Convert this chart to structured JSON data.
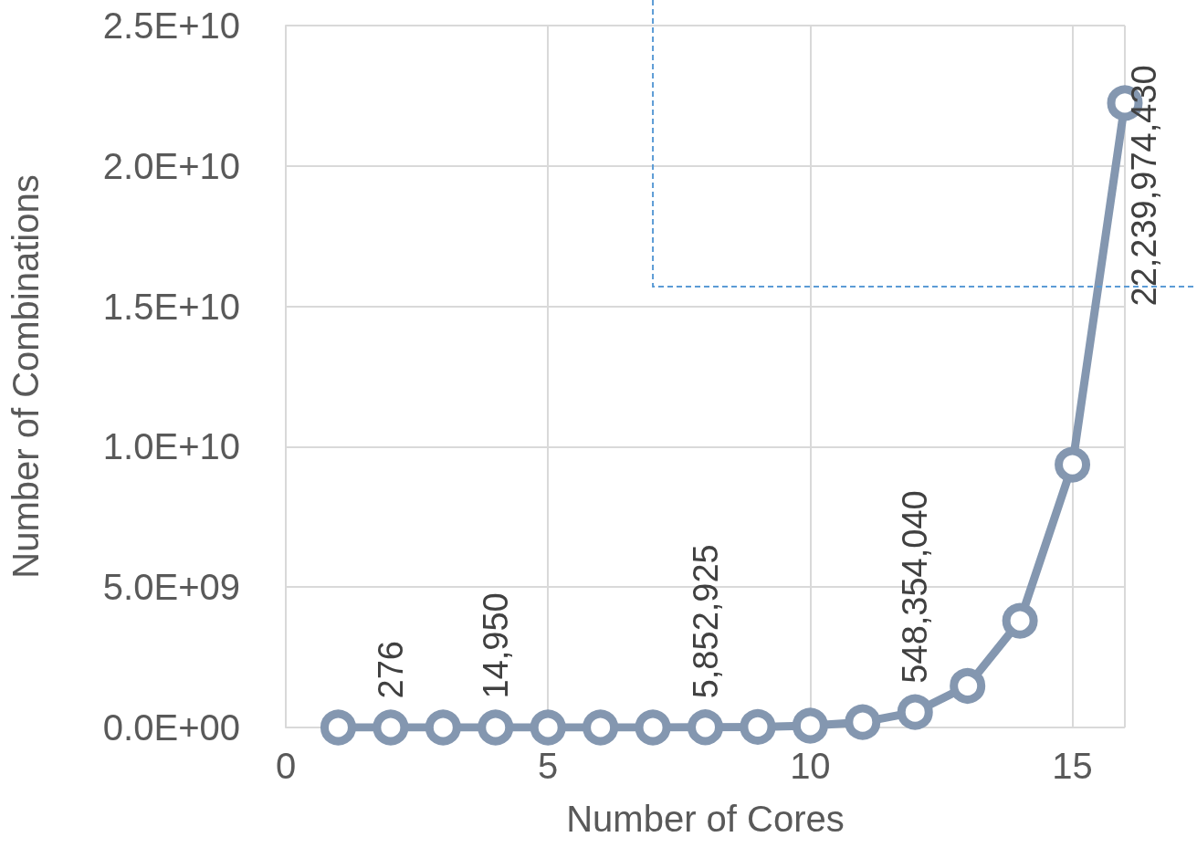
{
  "chart_data": {
    "type": "line",
    "xlabel": "Number of Cores",
    "ylabel": "Number of Combinations",
    "x": [
      1,
      2,
      3,
      4,
      5,
      6,
      7,
      8,
      9,
      10,
      11,
      12,
      13,
      14,
      15,
      16
    ],
    "series": [
      {
        "color": "#8497b0",
        "values": [
          0,
          276,
          0,
          14950,
          0,
          0,
          0,
          5852925,
          20000000,
          65000000,
          190000000,
          548354040,
          1480000000,
          3800000000,
          9360000000,
          22239974430
        ],
        "value_labels": [
          null,
          "276",
          null,
          "14,950",
          null,
          null,
          null,
          "5,852,925",
          null,
          null,
          null,
          "548,354,040",
          null,
          null,
          null,
          "22,239,974,430"
        ]
      }
    ],
    "xlim": [
      0,
      16
    ],
    "xticks": [
      0,
      5,
      10,
      15
    ],
    "ylim": [
      0,
      25000000000
    ],
    "yticks": [
      {
        "value": 0,
        "label": "0.0E+00"
      },
      {
        "value": 5000000000,
        "label": "5.0E+09"
      },
      {
        "value": 10000000000,
        "label": "1.0E+10"
      },
      {
        "value": 15000000000,
        "label": "1.5E+10"
      },
      {
        "value": 20000000000,
        "label": "2.0E+10"
      },
      {
        "value": 25000000000,
        "label": "2.5E+10"
      }
    ],
    "grid": true,
    "marker": "circle",
    "line_style": "solid"
  }
}
